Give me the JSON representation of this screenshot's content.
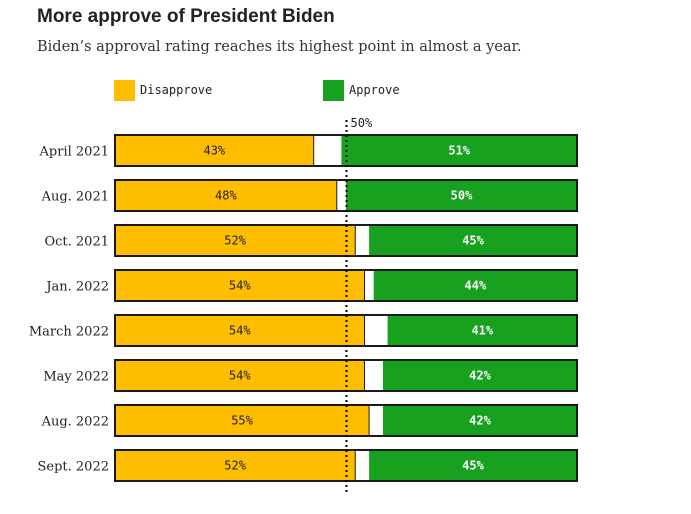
{
  "title": "More approve of President Biden",
  "subtitle": "Biden’s approval rating reaches its highest point in almost a year.",
  "colors": {
    "disapprove": "#ffbd00",
    "approve": "#17a11f",
    "border": "#1a1a1a",
    "neutral": "#ffffff"
  },
  "chart_data": {
    "type": "bar",
    "orientation": "horizontal-stacked",
    "title": "More approve of President Biden",
    "subtitle": "Biden’s approval rating reaches its highest point in almost a year.",
    "categories": [
      "April 2021",
      "Aug. 2021",
      "Oct. 2021",
      "Jan. 2022",
      "March 2022",
      "May 2022",
      "Aug. 2022",
      "Sept. 2022"
    ],
    "series": [
      {
        "name": "Disapprove",
        "values": [
          43,
          48,
          52,
          54,
          54,
          54,
          55,
          52
        ],
        "color": "#ffbd00",
        "align": "left"
      },
      {
        "name": "Approve",
        "values": [
          51,
          50,
          45,
          44,
          41,
          42,
          42,
          45
        ],
        "color": "#17a11f",
        "align": "right"
      }
    ],
    "labels": {
      "disapprove": [
        "43%",
        "48%",
        "52%",
        "54%",
        "54%",
        "54%",
        "55%",
        "52%"
      ],
      "approve": [
        "51%",
        "50%",
        "45%",
        "44%",
        "41%",
        "42%",
        "42%",
        "45%"
      ]
    },
    "reference_line": {
      "value": 50,
      "label": "50%",
      "style": "dotted"
    },
    "xlim": [
      0,
      100
    ],
    "legend": {
      "placement": "top",
      "entries": [
        "Disapprove",
        "Approve"
      ]
    }
  }
}
